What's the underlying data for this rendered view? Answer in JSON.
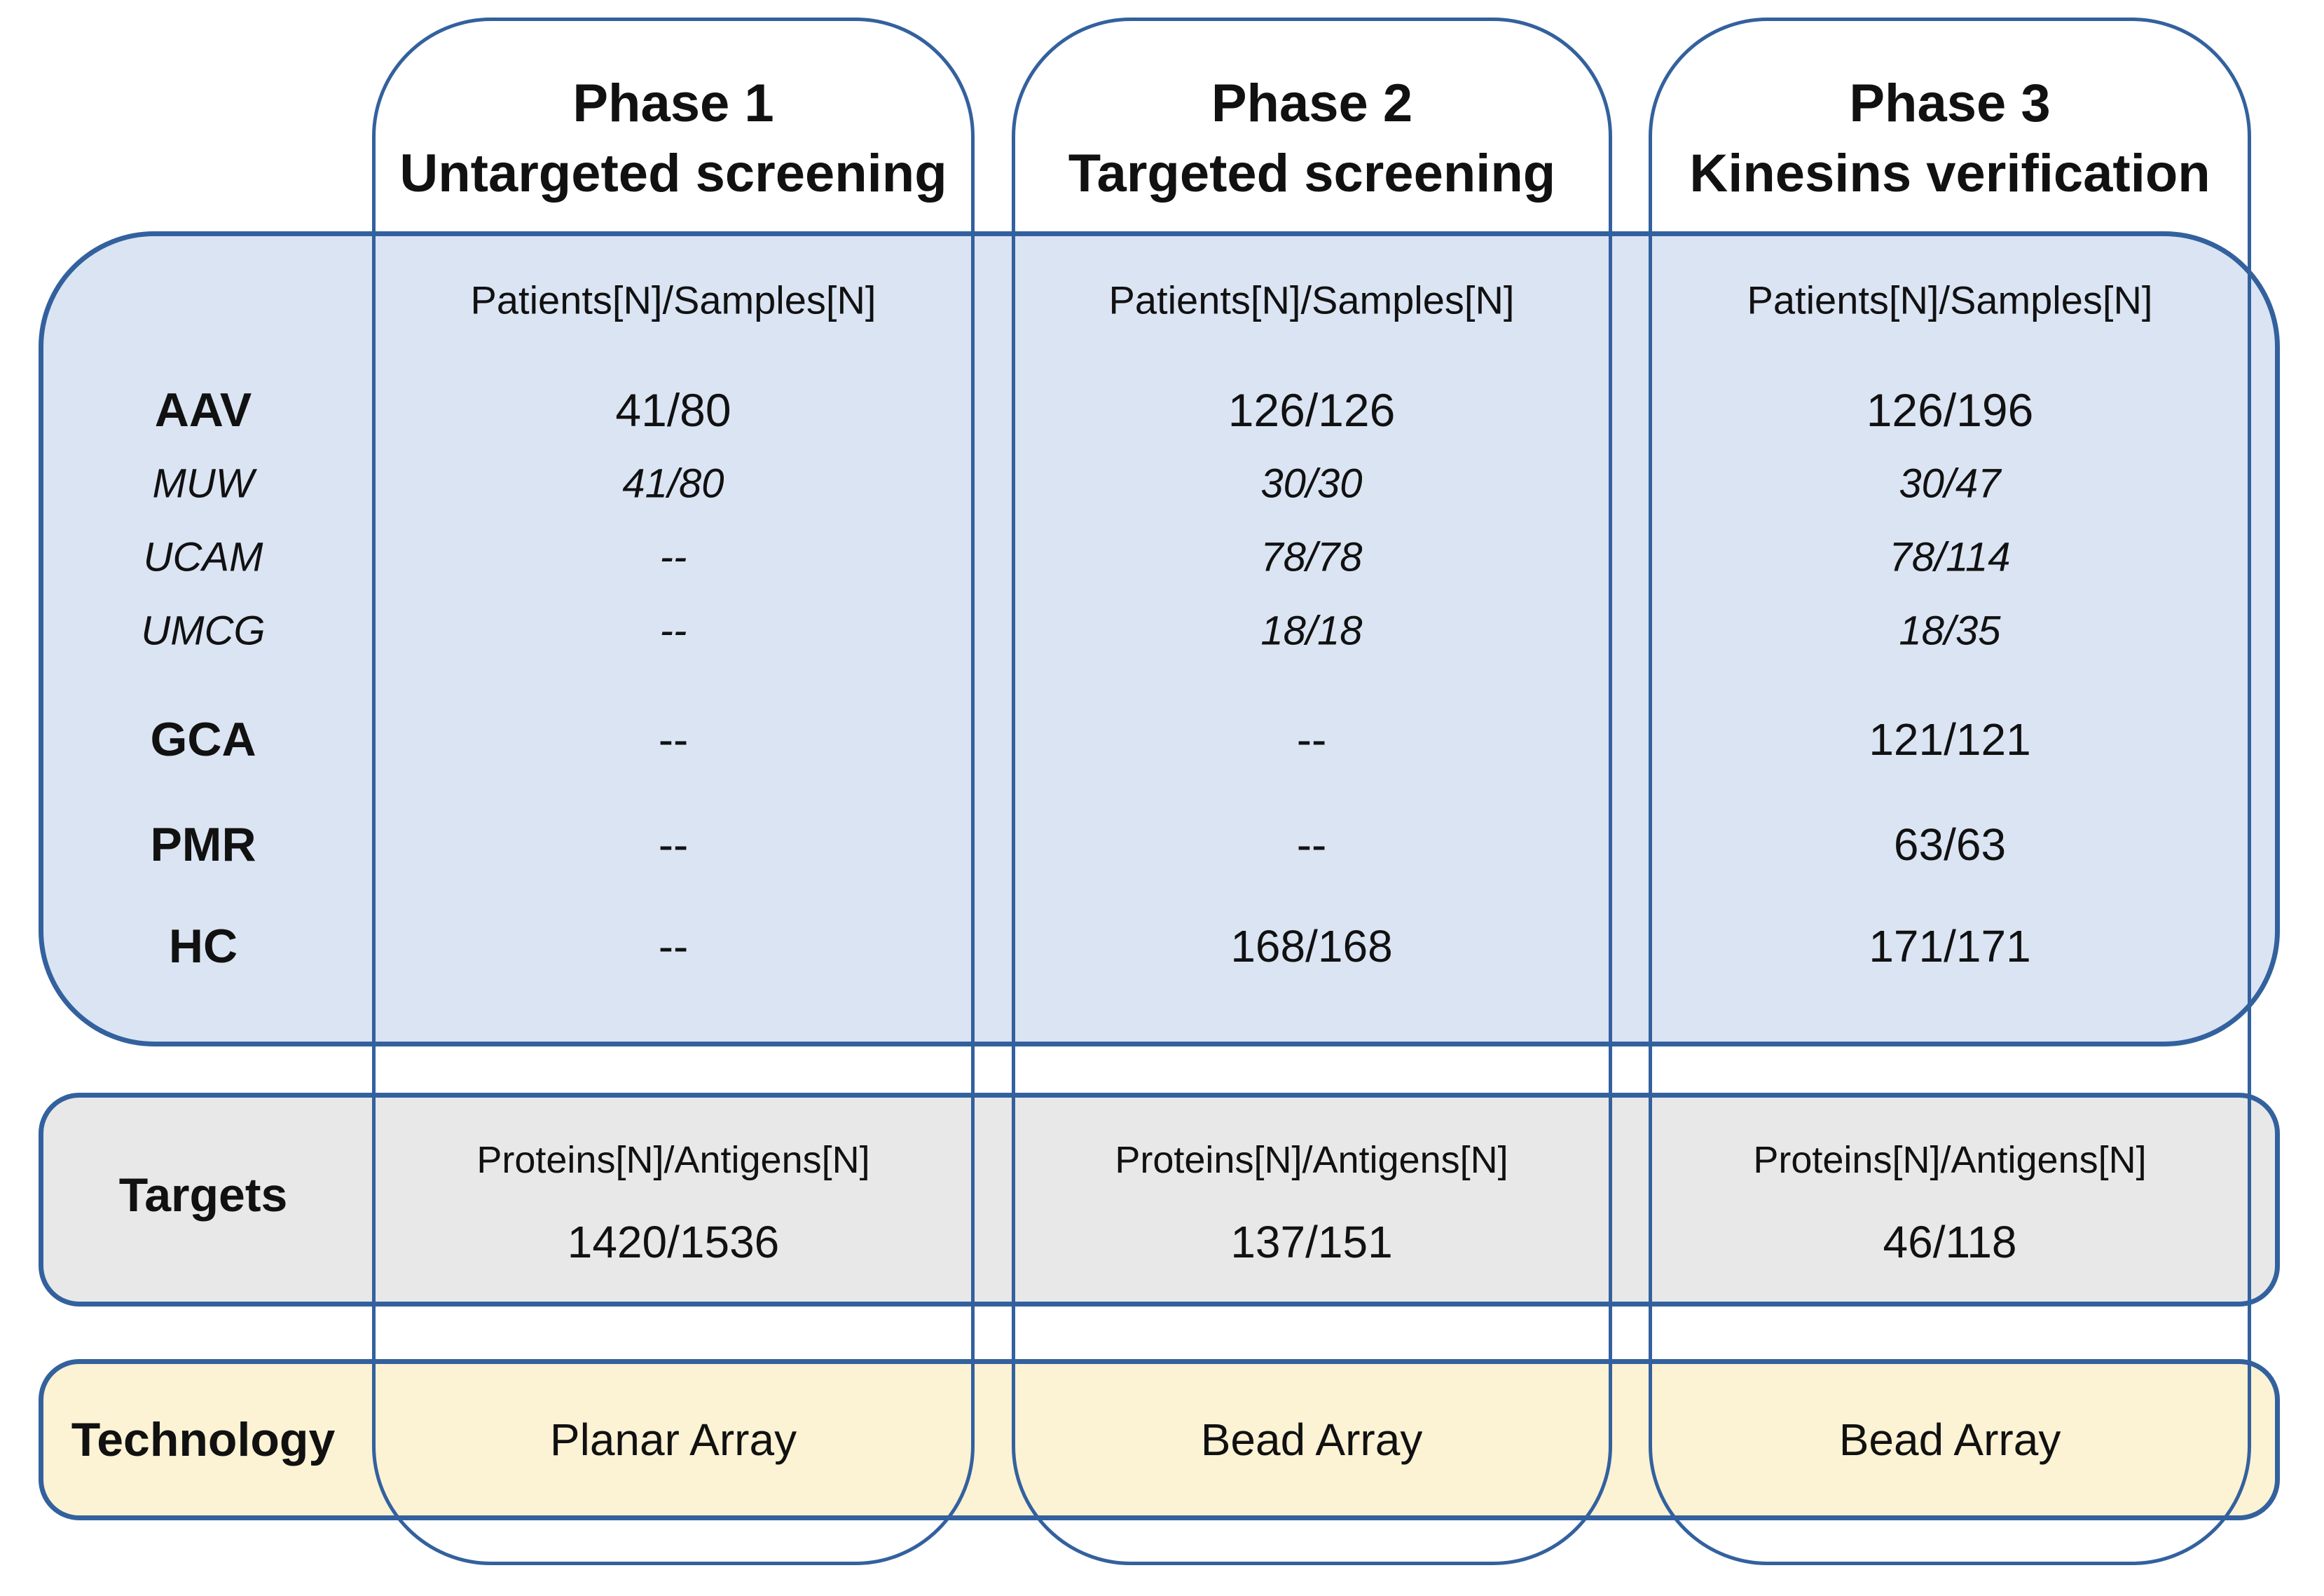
{
  "labels": {
    "aav": "AAV",
    "muw": "MUW",
    "ucam": "UCAM",
    "umcg": "UMCG",
    "gca": "GCA",
    "pmr": "PMR",
    "hc": "HC",
    "targets": "Targets",
    "technology": "Technology"
  },
  "phases": [
    {
      "title": "Phase 1",
      "subtitle": "Untargeted screening",
      "patients_header": "Patients[N]/Samples[N]",
      "values": {
        "aav": "41/80",
        "muw": "41/80",
        "ucam": "--",
        "umcg": "--",
        "gca": "--",
        "pmr": "--",
        "hc": "--"
      },
      "targets_header": "Proteins[N]/Antigens[N]",
      "targets_value": "1420/1536",
      "technology": "Planar Array"
    },
    {
      "title": "Phase 2",
      "subtitle": "Targeted screening",
      "patients_header": "Patients[N]/Samples[N]",
      "values": {
        "aav": "126/126",
        "muw": "30/30",
        "ucam": "78/78",
        "umcg": "18/18",
        "gca": "--",
        "pmr": "--",
        "hc": "168/168"
      },
      "targets_header": "Proteins[N]/Antigens[N]",
      "targets_value": "137/151",
      "technology": "Bead Array"
    },
    {
      "title": "Phase 3",
      "subtitle": "Kinesins verification",
      "patients_header": "Patients[N]/Samples[N]",
      "values": {
        "aav": "126/196",
        "muw": "30/47",
        "ucam": "78/114",
        "umcg": "18/35",
        "gca": "121/121",
        "pmr": "63/63",
        "hc": "171/171"
      },
      "targets_header": "Proteins[N]/Antigens[N]",
      "targets_value": "46/118",
      "technology": "Bead Array"
    }
  ],
  "colors": {
    "border_blue": "#33619e",
    "patients_fill": "#dbe4f3",
    "targets_fill": "#e8e8e8",
    "technology_fill": "#fcf2d4"
  }
}
